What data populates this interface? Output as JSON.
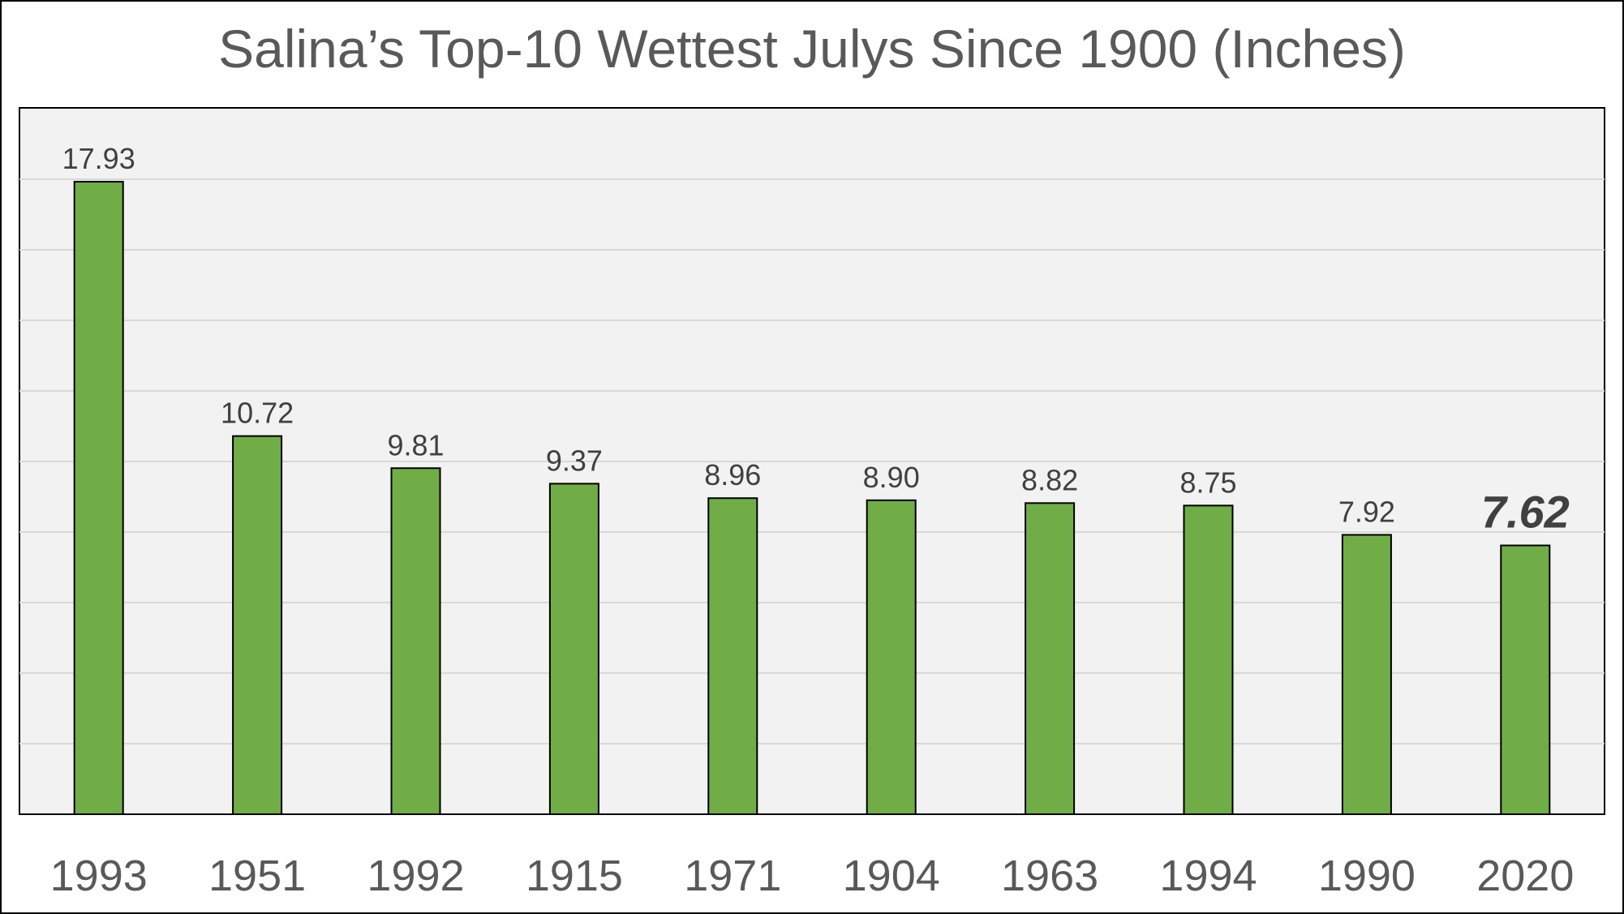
{
  "chart_data": {
    "type": "bar",
    "title": "Salina’s Top-10 Wettest Julys Since 1900 (Inches)",
    "categories": [
      "1993",
      "1951",
      "1992",
      "1915",
      "1971",
      "1904",
      "1963",
      "1994",
      "1990",
      "2020"
    ],
    "values": [
      17.93,
      10.72,
      9.81,
      9.37,
      8.96,
      8.9,
      8.82,
      8.75,
      7.92,
      7.62
    ],
    "data_labels": [
      "17.93",
      "10.72",
      "9.81",
      "9.37",
      "8.96",
      "8.90",
      "8.82",
      "8.75",
      "7.92",
      "7.62"
    ],
    "highlighted_category": "2020",
    "xlabel": "",
    "ylabel": "",
    "ylim": [
      0,
      20
    ],
    "y_gridline_step": 2,
    "y_tick_labels_shown": false,
    "grid": true,
    "legend": "none",
    "colors": {
      "bar": "#70ad47",
      "bar_outline": "#000000",
      "plot_background": "#f2f2f2",
      "gridline": "#d9d9d9",
      "text": "#595959"
    }
  }
}
